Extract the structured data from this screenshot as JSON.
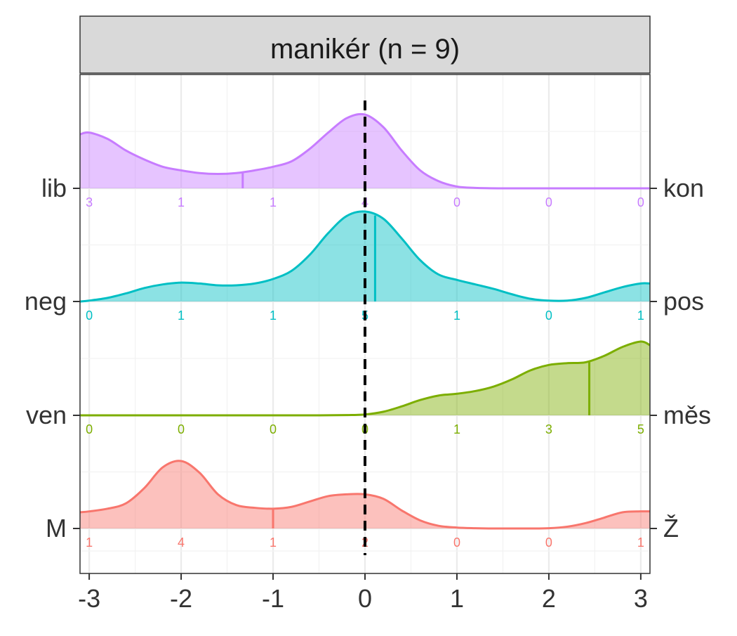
{
  "chart_data": {
    "type": "area",
    "title": "manikér (n = 9)",
    "xlim": [
      -3.1,
      3.1
    ],
    "x_ticks": [
      -3,
      -2,
      -1,
      0,
      1,
      2,
      3
    ],
    "x_tick_labels": [
      "-3",
      "-2",
      "-1",
      "0",
      "1",
      "2",
      "3"
    ],
    "grid": true,
    "reference_line_x": 0,
    "rows": [
      {
        "left_label": "lib",
        "right_label": "kon",
        "color": "#C77CFF",
        "mean": -1.33,
        "counts": [
          "3",
          "1",
          "1",
          "4",
          "0",
          "0",
          "0"
        ],
        "density_x": [
          -3.1,
          -3.0,
          -2.8,
          -2.6,
          -2.4,
          -2.2,
          -2.0,
          -1.8,
          -1.6,
          -1.4,
          -1.2,
          -1.0,
          -0.8,
          -0.6,
          -0.4,
          -0.2,
          0.0,
          0.2,
          0.4,
          0.6,
          0.8,
          1.0,
          1.2,
          1.5,
          2.0,
          2.5,
          3.0,
          3.1
        ],
        "density_y": [
          0.6,
          0.62,
          0.55,
          0.42,
          0.32,
          0.24,
          0.2,
          0.17,
          0.16,
          0.17,
          0.2,
          0.24,
          0.3,
          0.44,
          0.62,
          0.78,
          0.82,
          0.68,
          0.42,
          0.2,
          0.08,
          0.02,
          0.005,
          0,
          0,
          0,
          0,
          0
        ]
      },
      {
        "left_label": "neg",
        "right_label": "pos",
        "color": "#00BFC4",
        "mean": 0.11,
        "counts": [
          "0",
          "1",
          "1",
          "5",
          "1",
          "0",
          "1"
        ],
        "density_x": [
          -3.1,
          -3.0,
          -2.8,
          -2.6,
          -2.4,
          -2.2,
          -2.0,
          -1.8,
          -1.6,
          -1.4,
          -1.2,
          -1.0,
          -0.8,
          -0.6,
          -0.4,
          -0.2,
          0.0,
          0.2,
          0.4,
          0.6,
          0.8,
          1.0,
          1.2,
          1.4,
          1.6,
          1.8,
          2.0,
          2.2,
          2.4,
          2.6,
          2.8,
          3.0,
          3.1
        ],
        "density_y": [
          0.0,
          0.01,
          0.04,
          0.09,
          0.15,
          0.19,
          0.21,
          0.2,
          0.18,
          0.18,
          0.2,
          0.25,
          0.34,
          0.52,
          0.76,
          0.95,
          1.0,
          0.92,
          0.7,
          0.46,
          0.3,
          0.24,
          0.19,
          0.14,
          0.08,
          0.03,
          0.01,
          0.01,
          0.04,
          0.1,
          0.16,
          0.2,
          0.2
        ]
      },
      {
        "left_label": "ven",
        "right_label": "měs",
        "color": "#7CAE00",
        "mean": 2.44,
        "counts": [
          "0",
          "0",
          "0",
          "0",
          "1",
          "3",
          "5"
        ],
        "density_x": [
          -3.1,
          -1.0,
          -0.5,
          -0.2,
          0.0,
          0.2,
          0.4,
          0.6,
          0.8,
          1.0,
          1.2,
          1.4,
          1.6,
          1.8,
          2.0,
          2.2,
          2.4,
          2.6,
          2.8,
          3.0,
          3.1
        ],
        "density_y": [
          0,
          0,
          0,
          0.003,
          0.01,
          0.04,
          0.1,
          0.17,
          0.22,
          0.24,
          0.27,
          0.32,
          0.4,
          0.5,
          0.56,
          0.58,
          0.59,
          0.66,
          0.76,
          0.82,
          0.78
        ]
      },
      {
        "left_label": "M",
        "right_label": "Ž",
        "color": "#F8766D",
        "mean": -1.0,
        "counts": [
          "1",
          "4",
          "1",
          "2",
          "0",
          "0",
          "1"
        ],
        "density_x": [
          -3.1,
          -3.0,
          -2.8,
          -2.6,
          -2.4,
          -2.2,
          -2.0,
          -1.8,
          -1.6,
          -1.4,
          -1.2,
          -1.0,
          -0.8,
          -0.6,
          -0.4,
          -0.2,
          0.0,
          0.2,
          0.4,
          0.6,
          0.8,
          1.0,
          1.2,
          1.4,
          1.6,
          1.8,
          2.0,
          2.2,
          2.4,
          2.6,
          2.8,
          3.0,
          3.1
        ],
        "density_y": [
          0.18,
          0.19,
          0.22,
          0.28,
          0.45,
          0.68,
          0.75,
          0.62,
          0.38,
          0.26,
          0.23,
          0.22,
          0.24,
          0.3,
          0.36,
          0.38,
          0.38,
          0.33,
          0.2,
          0.09,
          0.03,
          0.01,
          0.003,
          0,
          0,
          0,
          0.003,
          0.02,
          0.06,
          0.12,
          0.18,
          0.19,
          0.19
        ]
      }
    ]
  }
}
